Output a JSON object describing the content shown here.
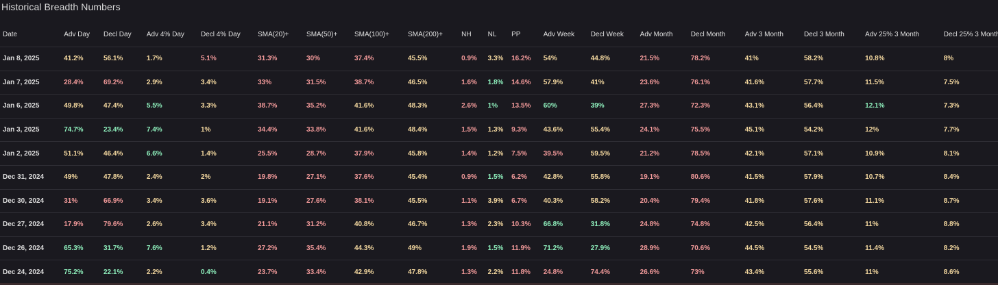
{
  "title": "Historical Breadth Numbers",
  "colors": {
    "background": "#1a191f",
    "positive": "#8ff0bd",
    "neutral": "#f5d9a0",
    "negative": "#f29a9a"
  },
  "columns": [
    "Date",
    "Adv Day",
    "Decl Day",
    "Adv 4% Day",
    "Decl 4% Day",
    "SMA(20)+",
    "SMA(50)+",
    "SMA(100)+",
    "SMA(200)+",
    "NH",
    "NL",
    "PP",
    "Adv Week",
    "Decl Week",
    "Adv Month",
    "Decl Month",
    "Adv 3 Month",
    "Decl 3 Month",
    "Adv 25% 3 Month",
    "Decl 25% 3 Month"
  ],
  "rows": [
    {
      "cells": [
        {
          "v": "Jan 8, 2025",
          "c": "date"
        },
        {
          "v": "41.2%",
          "c": "y"
        },
        {
          "v": "56.1%",
          "c": "y"
        },
        {
          "v": "1.7%",
          "c": "y"
        },
        {
          "v": "5.1%",
          "c": "r"
        },
        {
          "v": "31.3%",
          "c": "r"
        },
        {
          "v": "30%",
          "c": "r"
        },
        {
          "v": "37.4%",
          "c": "r"
        },
        {
          "v": "45.5%",
          "c": "y"
        },
        {
          "v": "0.9%",
          "c": "r"
        },
        {
          "v": "3.3%",
          "c": "y"
        },
        {
          "v": "16.2%",
          "c": "r"
        },
        {
          "v": "54%",
          "c": "y"
        },
        {
          "v": "44.8%",
          "c": "y"
        },
        {
          "v": "21.5%",
          "c": "r"
        },
        {
          "v": "78.2%",
          "c": "r"
        },
        {
          "v": "41%",
          "c": "y"
        },
        {
          "v": "58.2%",
          "c": "y"
        },
        {
          "v": "10.8%",
          "c": "y"
        },
        {
          "v": "8%",
          "c": "y"
        }
      ]
    },
    {
      "cells": [
        {
          "v": "Jan 7, 2025",
          "c": "date"
        },
        {
          "v": "28.4%",
          "c": "r"
        },
        {
          "v": "69.2%",
          "c": "r"
        },
        {
          "v": "2.9%",
          "c": "y"
        },
        {
          "v": "3.4%",
          "c": "y"
        },
        {
          "v": "33%",
          "c": "r"
        },
        {
          "v": "31.5%",
          "c": "r"
        },
        {
          "v": "38.7%",
          "c": "r"
        },
        {
          "v": "46.5%",
          "c": "y"
        },
        {
          "v": "1.6%",
          "c": "r"
        },
        {
          "v": "1.8%",
          "c": "g"
        },
        {
          "v": "14.6%",
          "c": "r"
        },
        {
          "v": "57.9%",
          "c": "y"
        },
        {
          "v": "41%",
          "c": "y"
        },
        {
          "v": "23.6%",
          "c": "r"
        },
        {
          "v": "76.1%",
          "c": "r"
        },
        {
          "v": "41.6%",
          "c": "y"
        },
        {
          "v": "57.7%",
          "c": "y"
        },
        {
          "v": "11.5%",
          "c": "y"
        },
        {
          "v": "7.5%",
          "c": "y"
        }
      ]
    },
    {
      "cells": [
        {
          "v": "Jan 6, 2025",
          "c": "date"
        },
        {
          "v": "49.8%",
          "c": "y"
        },
        {
          "v": "47.4%",
          "c": "y"
        },
        {
          "v": "5.5%",
          "c": "g"
        },
        {
          "v": "3.3%",
          "c": "y"
        },
        {
          "v": "38.7%",
          "c": "r"
        },
        {
          "v": "35.2%",
          "c": "r"
        },
        {
          "v": "41.6%",
          "c": "y"
        },
        {
          "v": "48.3%",
          "c": "y"
        },
        {
          "v": "2.6%",
          "c": "r"
        },
        {
          "v": "1%",
          "c": "g"
        },
        {
          "v": "13.5%",
          "c": "r"
        },
        {
          "v": "60%",
          "c": "g"
        },
        {
          "v": "39%",
          "c": "g"
        },
        {
          "v": "27.3%",
          "c": "r"
        },
        {
          "v": "72.3%",
          "c": "r"
        },
        {
          "v": "43.1%",
          "c": "y"
        },
        {
          "v": "56.4%",
          "c": "y"
        },
        {
          "v": "12.1%",
          "c": "g"
        },
        {
          "v": "7.3%",
          "c": "y"
        }
      ]
    },
    {
      "cells": [
        {
          "v": "Jan 3, 2025",
          "c": "date"
        },
        {
          "v": "74.7%",
          "c": "g"
        },
        {
          "v": "23.4%",
          "c": "g"
        },
        {
          "v": "7.4%",
          "c": "g"
        },
        {
          "v": "1%",
          "c": "y"
        },
        {
          "v": "34.4%",
          "c": "r"
        },
        {
          "v": "33.8%",
          "c": "r"
        },
        {
          "v": "41.6%",
          "c": "y"
        },
        {
          "v": "48.4%",
          "c": "y"
        },
        {
          "v": "1.5%",
          "c": "r"
        },
        {
          "v": "1.3%",
          "c": "y"
        },
        {
          "v": "9.3%",
          "c": "r"
        },
        {
          "v": "43.6%",
          "c": "y"
        },
        {
          "v": "55.4%",
          "c": "y"
        },
        {
          "v": "24.1%",
          "c": "r"
        },
        {
          "v": "75.5%",
          "c": "r"
        },
        {
          "v": "45.1%",
          "c": "y"
        },
        {
          "v": "54.2%",
          "c": "y"
        },
        {
          "v": "12%",
          "c": "y"
        },
        {
          "v": "7.7%",
          "c": "y"
        }
      ]
    },
    {
      "cells": [
        {
          "v": "Jan 2, 2025",
          "c": "date"
        },
        {
          "v": "51.1%",
          "c": "y"
        },
        {
          "v": "46.4%",
          "c": "y"
        },
        {
          "v": "6.6%",
          "c": "g"
        },
        {
          "v": "1.4%",
          "c": "y"
        },
        {
          "v": "25.5%",
          "c": "r"
        },
        {
          "v": "28.7%",
          "c": "r"
        },
        {
          "v": "37.9%",
          "c": "r"
        },
        {
          "v": "45.8%",
          "c": "y"
        },
        {
          "v": "1.4%",
          "c": "r"
        },
        {
          "v": "1.2%",
          "c": "y"
        },
        {
          "v": "7.5%",
          "c": "r"
        },
        {
          "v": "39.5%",
          "c": "r"
        },
        {
          "v": "59.5%",
          "c": "y"
        },
        {
          "v": "21.2%",
          "c": "r"
        },
        {
          "v": "78.5%",
          "c": "r"
        },
        {
          "v": "42.1%",
          "c": "y"
        },
        {
          "v": "57.1%",
          "c": "y"
        },
        {
          "v": "10.9%",
          "c": "y"
        },
        {
          "v": "8.1%",
          "c": "y"
        }
      ]
    },
    {
      "cells": [
        {
          "v": "Dec 31, 2024",
          "c": "date"
        },
        {
          "v": "49%",
          "c": "y"
        },
        {
          "v": "47.8%",
          "c": "y"
        },
        {
          "v": "2.4%",
          "c": "y"
        },
        {
          "v": "2%",
          "c": "y"
        },
        {
          "v": "19.8%",
          "c": "r"
        },
        {
          "v": "27.1%",
          "c": "r"
        },
        {
          "v": "37.6%",
          "c": "r"
        },
        {
          "v": "45.4%",
          "c": "y"
        },
        {
          "v": "0.9%",
          "c": "r"
        },
        {
          "v": "1.5%",
          "c": "g"
        },
        {
          "v": "6.2%",
          "c": "r"
        },
        {
          "v": "42.8%",
          "c": "y"
        },
        {
          "v": "55.8%",
          "c": "y"
        },
        {
          "v": "19.1%",
          "c": "r"
        },
        {
          "v": "80.6%",
          "c": "r"
        },
        {
          "v": "41.5%",
          "c": "y"
        },
        {
          "v": "57.9%",
          "c": "y"
        },
        {
          "v": "10.7%",
          "c": "y"
        },
        {
          "v": "8.4%",
          "c": "y"
        }
      ]
    },
    {
      "cells": [
        {
          "v": "Dec 30, 2024",
          "c": "date"
        },
        {
          "v": "31%",
          "c": "r"
        },
        {
          "v": "66.9%",
          "c": "r"
        },
        {
          "v": "3.4%",
          "c": "y"
        },
        {
          "v": "3.6%",
          "c": "y"
        },
        {
          "v": "19.1%",
          "c": "r"
        },
        {
          "v": "27.6%",
          "c": "r"
        },
        {
          "v": "38.1%",
          "c": "r"
        },
        {
          "v": "45.5%",
          "c": "y"
        },
        {
          "v": "1.1%",
          "c": "r"
        },
        {
          "v": "3.9%",
          "c": "y"
        },
        {
          "v": "6.7%",
          "c": "r"
        },
        {
          "v": "40.3%",
          "c": "y"
        },
        {
          "v": "58.2%",
          "c": "y"
        },
        {
          "v": "20.4%",
          "c": "r"
        },
        {
          "v": "79.4%",
          "c": "r"
        },
        {
          "v": "41.8%",
          "c": "y"
        },
        {
          "v": "57.6%",
          "c": "y"
        },
        {
          "v": "11.1%",
          "c": "y"
        },
        {
          "v": "8.7%",
          "c": "y"
        }
      ]
    },
    {
      "cells": [
        {
          "v": "Dec 27, 2024",
          "c": "date"
        },
        {
          "v": "17.9%",
          "c": "r"
        },
        {
          "v": "79.6%",
          "c": "r"
        },
        {
          "v": "2.6%",
          "c": "y"
        },
        {
          "v": "3.4%",
          "c": "y"
        },
        {
          "v": "21.1%",
          "c": "r"
        },
        {
          "v": "31.2%",
          "c": "r"
        },
        {
          "v": "40.8%",
          "c": "y"
        },
        {
          "v": "46.7%",
          "c": "y"
        },
        {
          "v": "1.3%",
          "c": "r"
        },
        {
          "v": "2.3%",
          "c": "y"
        },
        {
          "v": "10.3%",
          "c": "r"
        },
        {
          "v": "66.8%",
          "c": "g"
        },
        {
          "v": "31.8%",
          "c": "g"
        },
        {
          "v": "24.8%",
          "c": "r"
        },
        {
          "v": "74.8%",
          "c": "r"
        },
        {
          "v": "42.5%",
          "c": "y"
        },
        {
          "v": "56.4%",
          "c": "y"
        },
        {
          "v": "11%",
          "c": "y"
        },
        {
          "v": "8.8%",
          "c": "y"
        }
      ]
    },
    {
      "cells": [
        {
          "v": "Dec 26, 2024",
          "c": "date"
        },
        {
          "v": "65.3%",
          "c": "g"
        },
        {
          "v": "31.7%",
          "c": "g"
        },
        {
          "v": "7.6%",
          "c": "g"
        },
        {
          "v": "1.2%",
          "c": "y"
        },
        {
          "v": "27.2%",
          "c": "r"
        },
        {
          "v": "35.4%",
          "c": "r"
        },
        {
          "v": "44.3%",
          "c": "y"
        },
        {
          "v": "49%",
          "c": "y"
        },
        {
          "v": "1.9%",
          "c": "r"
        },
        {
          "v": "1.5%",
          "c": "g"
        },
        {
          "v": "11.9%",
          "c": "r"
        },
        {
          "v": "71.2%",
          "c": "g"
        },
        {
          "v": "27.9%",
          "c": "g"
        },
        {
          "v": "28.9%",
          "c": "r"
        },
        {
          "v": "70.6%",
          "c": "r"
        },
        {
          "v": "44.5%",
          "c": "y"
        },
        {
          "v": "54.5%",
          "c": "y"
        },
        {
          "v": "11.4%",
          "c": "y"
        },
        {
          "v": "8.2%",
          "c": "y"
        }
      ]
    },
    {
      "cells": [
        {
          "v": "Dec 24, 2024",
          "c": "date"
        },
        {
          "v": "75.2%",
          "c": "g"
        },
        {
          "v": "22.1%",
          "c": "g"
        },
        {
          "v": "2.2%",
          "c": "y"
        },
        {
          "v": "0.4%",
          "c": "g"
        },
        {
          "v": "23.7%",
          "c": "r"
        },
        {
          "v": "33.4%",
          "c": "r"
        },
        {
          "v": "42.9%",
          "c": "y"
        },
        {
          "v": "47.8%",
          "c": "y"
        },
        {
          "v": "1.3%",
          "c": "r"
        },
        {
          "v": "2.2%",
          "c": "y"
        },
        {
          "v": "11.8%",
          "c": "r"
        },
        {
          "v": "24.8%",
          "c": "r"
        },
        {
          "v": "74.4%",
          "c": "r"
        },
        {
          "v": "26.6%",
          "c": "r"
        },
        {
          "v": "73%",
          "c": "r"
        },
        {
          "v": "43.4%",
          "c": "y"
        },
        {
          "v": "55.6%",
          "c": "y"
        },
        {
          "v": "11%",
          "c": "y"
        },
        {
          "v": "8.6%",
          "c": "y"
        }
      ]
    }
  ]
}
